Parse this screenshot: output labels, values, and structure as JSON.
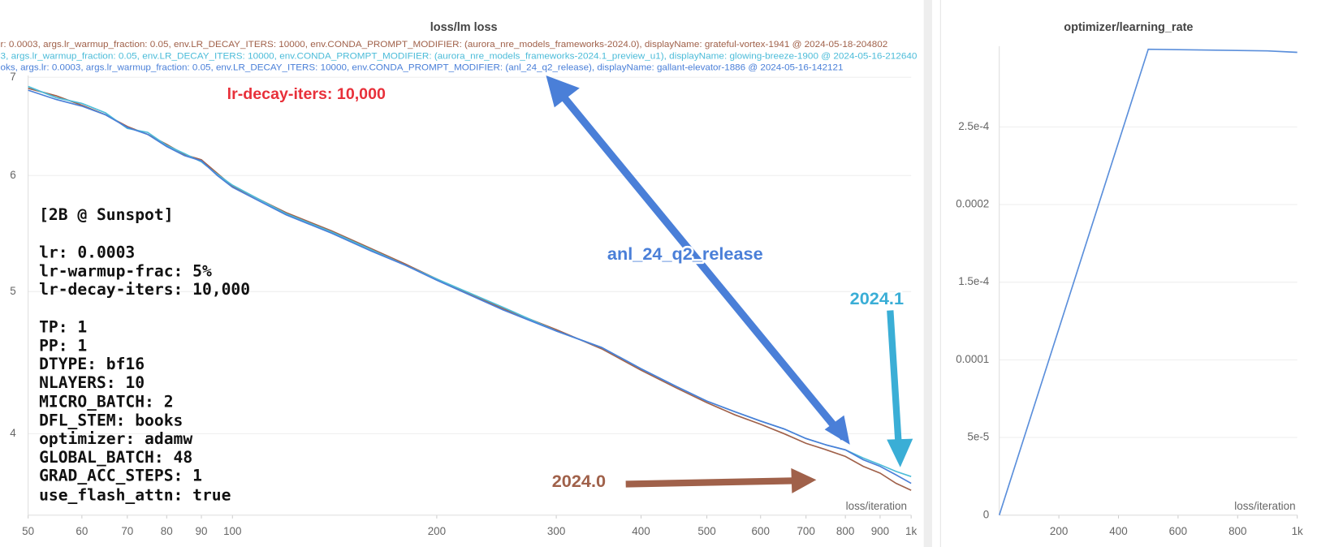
{
  "chart_data": [
    {
      "type": "line",
      "title": "loss/lm loss",
      "x_label": "loss/iteration",
      "xscale": "log",
      "yscale": "log",
      "grid": true,
      "xlim": [
        50,
        1000
      ],
      "ylim": [
        3.52,
        7.02
      ],
      "xticks": [
        50,
        60,
        70,
        80,
        90,
        100,
        200,
        300,
        400,
        500,
        600,
        700,
        800,
        900,
        {
          "value": 1000,
          "label": "1k"
        }
      ],
      "yticks": [
        4,
        5,
        6,
        7
      ],
      "x": [
        50,
        55,
        60,
        65,
        70,
        75,
        80,
        85,
        90,
        95,
        100,
        120,
        140,
        160,
        180,
        200,
        250,
        300,
        350,
        400,
        450,
        500,
        550,
        600,
        650,
        700,
        750,
        800,
        850,
        900,
        950,
        1000
      ],
      "series": [
        {
          "name": "r: 0.0003, args.lr_warmup_fraction: 0.05, env.LR_DECAY_ITERS: 10000, env.CONDA_PROMPT_MODIFIER: (aurora_nre_models_frameworks-2024.0), displayName: grateful-vortex-1941 @ 2024-05-18-204802",
          "color": "#a0614a",
          "values": [
            6.88,
            6.8,
            6.7,
            6.6,
            6.48,
            6.4,
            6.3,
            6.2,
            6.15,
            6.02,
            5.9,
            5.66,
            5.5,
            5.35,
            5.22,
            5.1,
            4.87,
            4.71,
            4.57,
            4.42,
            4.3,
            4.2,
            4.12,
            4.06,
            4.0,
            3.94,
            3.9,
            3.86,
            3.8,
            3.76,
            3.7,
            3.66
          ]
        },
        {
          "name": "3, args.lr_warmup_fraction: 0.05, env.LR_DECAY_ITERS: 10000, env.CONDA_PROMPT_MODIFIER: (aurora_nre_models_frameworks-2024.1_preview_u1), displayName: glowing-breeze-1900 @ 2024-05-16-212640",
          "color": "#4cbcd9",
          "values": [
            6.9,
            6.78,
            6.72,
            6.62,
            6.46,
            6.42,
            6.29,
            6.21,
            6.13,
            6.01,
            5.91,
            5.65,
            5.49,
            5.34,
            5.21,
            5.1,
            4.88,
            4.7,
            4.58,
            4.43,
            4.31,
            4.21,
            4.14,
            4.08,
            4.03,
            3.97,
            3.93,
            3.9,
            3.85,
            3.81,
            3.77,
            3.74
          ]
        },
        {
          "name": "oks, args.lr: 0.0003, args.lr_warmup_fraction: 0.05, env.LR_DECAY_ITERS: 10000, env.CONDA_PROMPT_MODIFIER: (anl_24_q2_release), displayName: gallant-elevator-1886 @ 2024-05-16-142121",
          "color": "#4a7fd8",
          "values": [
            6.86,
            6.76,
            6.69,
            6.6,
            6.47,
            6.4,
            6.28,
            6.19,
            6.14,
            6.0,
            5.89,
            5.64,
            5.48,
            5.33,
            5.21,
            5.09,
            4.86,
            4.7,
            4.58,
            4.43,
            4.31,
            4.21,
            4.14,
            4.08,
            4.03,
            3.97,
            3.93,
            3.9,
            3.84,
            3.8,
            3.75,
            3.7
          ]
        }
      ],
      "notes": [
        "[2B @ Sunspot]",
        "lr: 0.0003",
        "lr-warmup-frac: 5%",
        "lr-decay-iters: 10,000",
        "TP: 1",
        "PP: 1",
        "DTYPE: bf16",
        "NLAYERS: 10",
        "MICRO_BATCH: 2",
        "DFL_STEM: books",
        "optimizer: adamw",
        "GLOBAL_BATCH: 48",
        "GRAD_ACC_STEPS: 1",
        "use_flash_attn: true"
      ],
      "callouts": [
        {
          "text": "lr-decay-iters: 10,000",
          "color": "#e8303a"
        },
        {
          "text": "anl_24_q2_release",
          "color": "#4a7fd8"
        },
        {
          "text": "2024.1",
          "color": "#3aaed6"
        },
        {
          "text": "2024.0",
          "color": "#a0614a"
        }
      ]
    },
    {
      "type": "line",
      "title": "optimizer/learning_rate",
      "x_label": "loss/iteration",
      "grid": true,
      "xlim": [
        0,
        1000
      ],
      "ylim": [
        0,
        0.000302
      ],
      "xticks": [
        200,
        400,
        600,
        800,
        {
          "value": 1000,
          "label": "1k"
        }
      ],
      "yticks": [
        0,
        {
          "value": 5e-05,
          "label": "5e-5"
        },
        0.0001,
        {
          "value": 0.00015,
          "label": "1.5e-4"
        },
        0.0002,
        {
          "value": 0.00025,
          "label": "2.5e-4"
        }
      ],
      "x": [
        0,
        500,
        900,
        1000
      ],
      "series": [
        {
          "color": "#5b8fdb",
          "values": [
            0,
            0.0003,
            0.000299,
            0.000298
          ]
        }
      ]
    }
  ]
}
